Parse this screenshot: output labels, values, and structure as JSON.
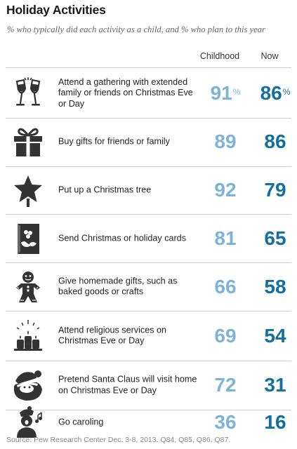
{
  "title": "Holiday Activities",
  "subtitle": "% who typically did each activity as a child, and % who plan to this year",
  "columns": {
    "childhood": "Childhood",
    "now": "Now"
  },
  "percent_sign": "%",
  "source": "Source: Pew Research Center Dec. 3-8, 2013. Q84, Q85, Q86, Q87.",
  "colors": {
    "childhood": "#7db3d8",
    "now": "#136fa0",
    "icon": "#333333"
  },
  "rows": [
    {
      "label": "Attend a gathering with extended family or friends on Christmas Eve or Day",
      "childhood": "91",
      "now": "86",
      "icon": "champagne-glasses-icon"
    },
    {
      "label": "Buy gifts for friends or family",
      "childhood": "89",
      "now": "86",
      "icon": "gift-box-icon"
    },
    {
      "label": "Put up a Christmas tree",
      "childhood": "92",
      "now": "79",
      "icon": "christmas-tree-star-icon"
    },
    {
      "label": "Send Christmas or holiday cards",
      "childhood": "81",
      "now": "65",
      "icon": "holiday-card-icon"
    },
    {
      "label": "Give homemade gifts, such as baked goods or crafts",
      "childhood": "66",
      "now": "58",
      "icon": "gingerbread-man-icon"
    },
    {
      "label": "Attend religious services on Christmas Eve or Day",
      "childhood": "69",
      "now": "54",
      "icon": "candles-icon"
    },
    {
      "label": "Pretend Santa Claus will visit home on Christmas Eve or Day",
      "childhood": "72",
      "now": "31",
      "icon": "santa-claus-icon"
    },
    {
      "label": "Go caroling",
      "childhood": "36",
      "now": "16",
      "icon": "caroler-icon"
    }
  ],
  "chart_data": {
    "type": "table",
    "title": "Holiday Activities",
    "subtitle": "% who typically did each activity as a child, and % who plan to this year",
    "categories": [
      "Attend a gathering with extended family or friends on Christmas Eve or Day",
      "Buy gifts for friends or family",
      "Put up a Christmas tree",
      "Send Christmas or holiday cards",
      "Give homemade gifts, such as baked goods or crafts",
      "Attend religious services on Christmas Eve or Day",
      "Pretend Santa Claus will visit home on Christmas Eve or Day",
      "Go caroling"
    ],
    "series": [
      {
        "name": "Childhood",
        "values": [
          91,
          89,
          92,
          81,
          66,
          69,
          72,
          36
        ]
      },
      {
        "name": "Now",
        "values": [
          86,
          86,
          79,
          65,
          58,
          54,
          31,
          16
        ]
      }
    ]
  }
}
